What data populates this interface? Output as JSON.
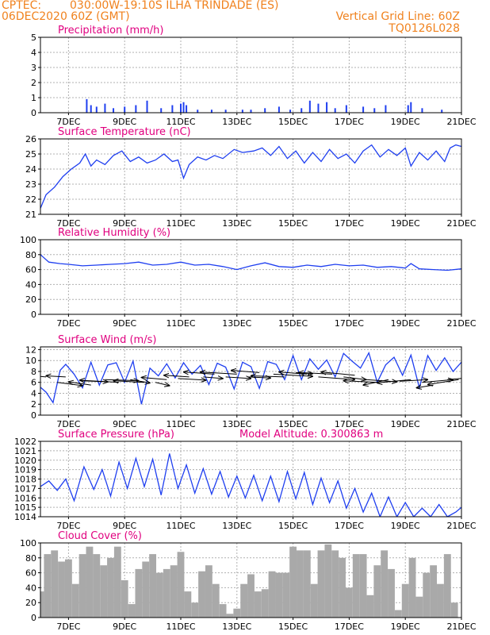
{
  "header": {
    "agency": "CPTEC:",
    "location": "030:00W-19:10S  ILHA TRINDADE (ES)",
    "run": "06DEC2020 60Z (GMT)",
    "grid_note": "Vertical Grid Line: 60Z",
    "model": "TQ0126L028"
  },
  "colors": {
    "header": "#f0821e",
    "title": "#e0007f",
    "series": "#1f3ff0",
    "cloud": "#a9a9a9",
    "grid": "#b0b0b0",
    "axes": "#000000"
  },
  "chart_data": [
    {
      "type": "bar",
      "title": "Precipitation (mm/h)",
      "ylim": [
        0,
        5
      ],
      "yticks": [
        0,
        1,
        2,
        3,
        4,
        5
      ],
      "xlim": [
        6.0,
        21.0
      ],
      "xticks": [
        7,
        9,
        11,
        13,
        15,
        17,
        19,
        21
      ],
      "xtick_labels": [
        "7DEC",
        "9DEC",
        "11DEC",
        "13DEC",
        "15DEC",
        "17DEC",
        "19DEC",
        "21DEC"
      ],
      "grid": true,
      "color": "#1f3ff0",
      "x": [
        7.65,
        7.8,
        8.0,
        8.3,
        8.6,
        9.0,
        9.4,
        9.8,
        10.3,
        10.7,
        11.0,
        11.1,
        11.2,
        11.6,
        12.1,
        12.6,
        13.2,
        13.5,
        14.0,
        14.5,
        14.9,
        15.3,
        15.6,
        15.9,
        16.2,
        16.5,
        16.9,
        17.5,
        17.9,
        18.3,
        19.1,
        19.2,
        19.6,
        20.3
      ],
      "values": [
        0.9,
        0.5,
        0.4,
        0.6,
        0.3,
        0.4,
        0.5,
        0.8,
        0.3,
        0.5,
        0.6,
        0.7,
        0.5,
        0.2,
        0.2,
        0.2,
        0.2,
        0.2,
        0.3,
        0.4,
        0.2,
        0.3,
        0.8,
        0.6,
        0.7,
        0.3,
        0.5,
        0.4,
        0.3,
        0.5,
        0.5,
        0.7,
        0.3,
        0.2
      ]
    },
    {
      "type": "line",
      "title": "Surface Temperature (nC)",
      "ylim": [
        21,
        26
      ],
      "yticks": [
        21,
        22,
        23,
        24,
        25,
        26
      ],
      "xlim": [
        6.0,
        21.0
      ],
      "xticks": [
        7,
        9,
        11,
        13,
        15,
        17,
        19,
        21
      ],
      "xtick_labels": [
        "7DEC",
        "9DEC",
        "11DEC",
        "13DEC",
        "15DEC",
        "17DEC",
        "19DEC",
        "21DEC"
      ],
      "grid": true,
      "color": "#1f3ff0",
      "x": [
        6.0,
        6.2,
        6.5,
        6.8,
        7.1,
        7.4,
        7.6,
        7.8,
        8.0,
        8.3,
        8.6,
        8.9,
        9.2,
        9.5,
        9.8,
        10.1,
        10.4,
        10.7,
        10.9,
        11.1,
        11.3,
        11.6,
        11.9,
        12.2,
        12.5,
        12.9,
        13.2,
        13.6,
        13.9,
        14.2,
        14.5,
        14.8,
        15.1,
        15.4,
        15.7,
        16.0,
        16.3,
        16.6,
        16.9,
        17.2,
        17.5,
        17.8,
        18.1,
        18.4,
        18.7,
        19.0,
        19.2,
        19.5,
        19.8,
        20.1,
        20.4,
        20.6,
        20.8,
        21.0
      ],
      "y": [
        21.4,
        22.3,
        22.8,
        23.5,
        24.0,
        24.4,
        25.0,
        24.2,
        24.6,
        24.3,
        24.9,
        25.2,
        24.5,
        24.8,
        24.4,
        24.6,
        25.0,
        24.5,
        24.6,
        23.4,
        24.3,
        24.8,
        24.6,
        24.9,
        24.7,
        25.3,
        25.1,
        25.2,
        25.4,
        24.9,
        25.5,
        24.7,
        25.2,
        24.4,
        25.1,
        24.5,
        25.3,
        24.7,
        25.0,
        24.4,
        25.2,
        25.6,
        24.8,
        25.3,
        24.9,
        25.4,
        24.2,
        25.1,
        24.6,
        25.2,
        24.5,
        25.4,
        25.6,
        25.5
      ]
    },
    {
      "type": "line",
      "title": "Relative Humidity (%)",
      "ylim": [
        0,
        100
      ],
      "yticks": [
        0,
        20,
        40,
        60,
        80,
        100
      ],
      "xlim": [
        6.0,
        21.0
      ],
      "xticks": [
        7,
        9,
        11,
        13,
        15,
        17,
        19,
        21
      ],
      "xtick_labels": [
        "7DEC",
        "9DEC",
        "11DEC",
        "13DEC",
        "15DEC",
        "17DEC",
        "19DEC",
        "21DEC"
      ],
      "grid": true,
      "color": "#1f3ff0",
      "x": [
        6.0,
        6.3,
        6.7,
        7.0,
        7.5,
        8.0,
        8.5,
        9.0,
        9.5,
        10.0,
        10.5,
        11.0,
        11.5,
        12.0,
        12.5,
        13.0,
        13.5,
        14.0,
        14.5,
        15.0,
        15.5,
        16.0,
        16.5,
        17.0,
        17.5,
        18.0,
        18.5,
        19.0,
        19.2,
        19.5,
        20.0,
        20.5,
        21.0
      ],
      "y": [
        80,
        70,
        68,
        67,
        65,
        66,
        67,
        68,
        70,
        66,
        67,
        70,
        66,
        67,
        64,
        60,
        65,
        69,
        64,
        63,
        66,
        64,
        67,
        65,
        66,
        63,
        64,
        62,
        68,
        61,
        60,
        59,
        61
      ]
    },
    {
      "type": "line",
      "title": "Surface Wind (m/s)",
      "ylim": [
        0,
        12.5
      ],
      "yticks": [
        0,
        2,
        4,
        6,
        8,
        10,
        12
      ],
      "xlim": [
        6.0,
        21.0
      ],
      "xticks": [
        7,
        9,
        11,
        13,
        15,
        17,
        19,
        21
      ],
      "xtick_labels": [
        "7DEC",
        "9DEC",
        "11DEC",
        "13DEC",
        "15DEC",
        "17DEC",
        "19DEC",
        "21DEC"
      ],
      "grid": true,
      "color": "#1f3ff0",
      "x": [
        6.0,
        6.2,
        6.45,
        6.7,
        6.9,
        7.2,
        7.5,
        7.8,
        8.1,
        8.4,
        8.7,
        9.0,
        9.3,
        9.6,
        9.9,
        10.2,
        10.5,
        10.8,
        11.1,
        11.4,
        11.7,
        12.0,
        12.3,
        12.6,
        12.9,
        13.2,
        13.5,
        13.8,
        14.1,
        14.4,
        14.7,
        15.0,
        15.3,
        15.6,
        15.9,
        16.2,
        16.5,
        16.8,
        17.1,
        17.4,
        17.7,
        18.0,
        18.3,
        18.6,
        18.9,
        19.2,
        19.5,
        19.8,
        20.1,
        20.4,
        20.7,
        21.0
      ],
      "y": [
        5.1,
        4.2,
        2.3,
        8.2,
        9.3,
        7.5,
        5.0,
        9.7,
        5.5,
        9.2,
        9.6,
        6.0,
        9.9,
        2.0,
        8.6,
        7.2,
        9.4,
        6.8,
        9.6,
        7.5,
        9.1,
        5.6,
        9.5,
        8.8,
        4.8,
        9.7,
        8.9,
        4.9,
        9.8,
        9.3,
        6.5,
        10.9,
        6.5,
        10.3,
        8.4,
        10.1,
        7.0,
        11.3,
        9.9,
        8.6,
        11.4,
        6.0,
        9.2,
        10.6,
        7.3,
        11.0,
        5.0,
        10.9,
        8.2,
        10.5,
        8.0,
        9.7
      ],
      "vector_origins_x": [
        6.2,
        6.6,
        6.9,
        7.4,
        7.8,
        8.3,
        8.8,
        9.2,
        9.7,
        10.1,
        10.5,
        10.9,
        11.3,
        11.8,
        12.2,
        12.6,
        13.0,
        13.4,
        13.8,
        14.3,
        14.7,
        15.1,
        15.5,
        15.9,
        16.4,
        16.8,
        17.2,
        17.6,
        18.0,
        18.4,
        18.8,
        19.2,
        19.6,
        20.0,
        20.5,
        20.9
      ],
      "vector_origins_y": [
        7.0,
        6.0,
        7.0,
        6.3,
        5.5,
        6.5,
        6.0,
        6.5,
        6.0,
        6.0,
        6.5,
        6.7,
        7.0,
        7.0,
        7.5,
        7.0,
        7.5,
        7.0,
        7.8,
        7.5,
        7.0,
        7.8,
        7.5,
        7.0,
        7.5,
        7.0,
        7.3,
        6.5,
        6.0,
        6.5,
        6.2,
        6.5,
        6.0,
        5.5,
        6.5,
        6.5
      ],
      "vector_u": [
        -1.2,
        0.9,
        -0.7,
        1.0,
        -0.8,
        1.2,
        -1.4,
        0.7,
        -1.1,
        0.5,
        -0.9,
        1.0,
        -0.9,
        0.7,
        -1.1,
        0.9,
        -1.3,
        0.8,
        -1.0,
        1.4,
        -1.2,
        0.6,
        -1.0,
        1.3,
        -1.2,
        0.8,
        -1.2,
        1.1,
        -1.2,
        -0.9,
        1.0,
        -1.2,
        1.1,
        -0.6,
        0.7,
        -1.1
      ],
      "vector_v": [
        0.5,
        -0.6,
        0.2,
        -0.2,
        0.6,
        -0.2,
        0.4,
        -0.6,
        0.3,
        -0.6,
        0.4,
        -0.3,
        0.3,
        -0.3,
        0.4,
        -0.3,
        0.4,
        -0.2,
        0.4,
        -0.4,
        0.2,
        -0.2,
        0.4,
        -0.5,
        0.3,
        -0.5,
        0.6,
        -0.4,
        0.3,
        -1.0,
        0.3,
        -0.6,
        0.5,
        -0.5,
        0.3,
        -0.9
      ]
    },
    {
      "type": "line",
      "title": "Surface Pressure (hPa)",
      "annotation": "Model Altitude: 0.300863 m",
      "ylim": [
        1014,
        1022
      ],
      "yticks": [
        1014,
        1015,
        1016,
        1017,
        1018,
        1019,
        1020,
        1021,
        1022
      ],
      "xlim": [
        6.0,
        21.0
      ],
      "xticks": [
        7,
        9,
        11,
        13,
        15,
        17,
        19,
        21
      ],
      "xtick_labels": [
        "7DEC",
        "9DEC",
        "11DEC",
        "13DEC",
        "15DEC",
        "17DEC",
        "19DEC",
        "21DEC"
      ],
      "grid": true,
      "color": "#1f3ff0",
      "x": [
        6.0,
        6.3,
        6.6,
        6.9,
        7.2,
        7.55,
        7.9,
        8.2,
        8.5,
        8.8,
        9.1,
        9.4,
        9.7,
        10.0,
        10.3,
        10.6,
        10.9,
        11.2,
        11.5,
        11.8,
        12.1,
        12.4,
        12.7,
        13.0,
        13.3,
        13.6,
        13.9,
        14.2,
        14.5,
        14.8,
        15.1,
        15.4,
        15.7,
        16.0,
        16.3,
        16.6,
        16.9,
        17.2,
        17.5,
        17.8,
        18.1,
        18.4,
        18.7,
        19.0,
        19.3,
        19.6,
        19.9,
        20.2,
        20.5,
        20.8,
        21.0
      ],
      "y": [
        1017.2,
        1017.8,
        1016.8,
        1018.0,
        1015.7,
        1019.3,
        1016.9,
        1019.0,
        1016.2,
        1019.8,
        1017.0,
        1020.2,
        1017.2,
        1020.1,
        1016.3,
        1020.7,
        1017.0,
        1019.5,
        1016.5,
        1019.1,
        1016.4,
        1018.8,
        1016.1,
        1018.3,
        1016.0,
        1018.4,
        1015.7,
        1018.3,
        1015.6,
        1018.8,
        1015.9,
        1018.7,
        1015.3,
        1018.1,
        1015.5,
        1017.8,
        1014.9,
        1017.0,
        1014.5,
        1016.5,
        1014.0,
        1016.1,
        1014.0,
        1015.5,
        1014.0,
        1014.9,
        1014.0,
        1015.3,
        1014.0,
        1014.5,
        1015.0
      ]
    },
    {
      "type": "bar",
      "title": "Cloud Cover (%)",
      "ylim": [
        0,
        100
      ],
      "yticks": [
        0,
        20,
        40,
        60,
        80,
        100
      ],
      "xlim": [
        6.0,
        21.0
      ],
      "xticks": [
        7,
        9,
        11,
        13,
        15,
        17,
        19,
        21
      ],
      "xtick_labels": [
        "7DEC",
        "9DEC",
        "11DEC",
        "13DEC",
        "15DEC",
        "17DEC",
        "19DEC",
        "21DEC"
      ],
      "grid": true,
      "color": "#a9a9a9",
      "x": [
        6.0,
        6.25,
        6.5,
        6.75,
        7.0,
        7.25,
        7.5,
        7.75,
        8.0,
        8.25,
        8.5,
        8.75,
        9.0,
        9.25,
        9.5,
        9.75,
        10.0,
        10.25,
        10.5,
        10.75,
        11.0,
        11.25,
        11.5,
        11.75,
        12.0,
        12.25,
        12.5,
        12.75,
        13.0,
        13.25,
        13.5,
        13.75,
        14.0,
        14.25,
        14.5,
        14.75,
        15.0,
        15.25,
        15.5,
        15.75,
        16.0,
        16.25,
        16.5,
        16.75,
        17.0,
        17.25,
        17.5,
        17.75,
        18.0,
        18.25,
        18.5,
        18.75,
        19.0,
        19.25,
        19.5,
        19.75,
        20.0,
        20.25,
        20.5,
        20.75,
        21.0
      ],
      "values": [
        35,
        85,
        90,
        75,
        78,
        45,
        85,
        95,
        85,
        70,
        80,
        95,
        50,
        18,
        65,
        75,
        85,
        60,
        65,
        70,
        88,
        35,
        20,
        62,
        70,
        45,
        18,
        5,
        12,
        45,
        58,
        35,
        38,
        62,
        60,
        60,
        95,
        90,
        90,
        45,
        90,
        98,
        90,
        80,
        40,
        85,
        85,
        30,
        70,
        90,
        65,
        10,
        45,
        80,
        28,
        60,
        70,
        45,
        85,
        20,
        0
      ]
    }
  ]
}
